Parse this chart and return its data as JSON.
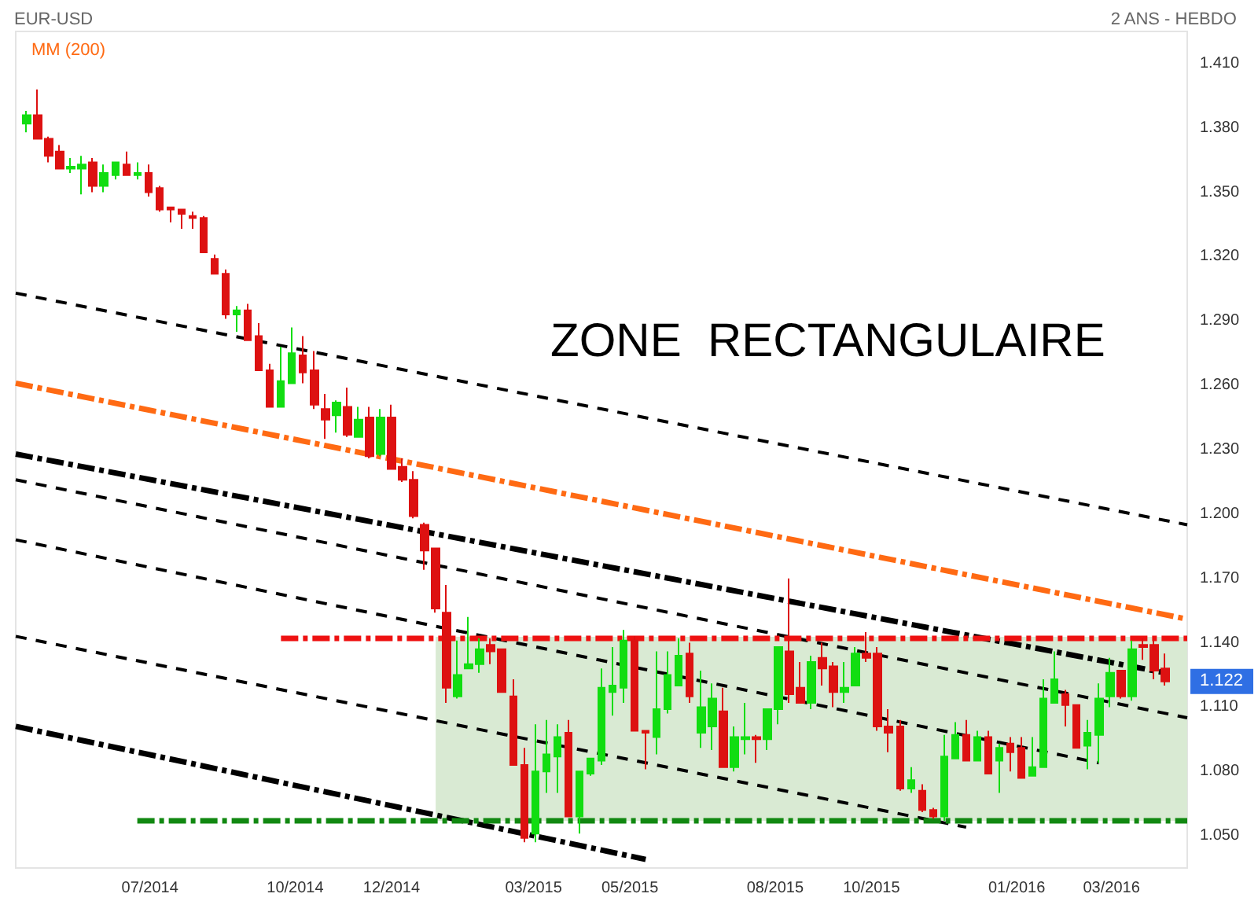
{
  "chart_data": {
    "type": "candlestick",
    "title": "EUR-USD",
    "subtitle": "2 ANS - HEBDO",
    "annotations": [
      "ZONE  RECTANGULAIRE",
      {
        "text": "1.122",
        "x": "2016-04-04",
        "y": 1.122
      }
    ],
    "legend": "top left",
    "grid": false,
    "xlim": [
      "2014-04-07",
      "2016-04-18"
    ],
    "xticks": [
      {
        "value": "2014-07-01",
        "label": "07/2014"
      },
      {
        "value": "2014-10-01",
        "label": "10/2014"
      },
      {
        "value": "2014-12-01",
        "label": "12/2014"
      },
      {
        "value": "2015-03-01",
        "label": "03/2015"
      },
      {
        "value": "2015-05-01",
        "label": "05/2015"
      },
      {
        "value": "2015-08-01",
        "label": "08/2015"
      },
      {
        "value": "2015-10-01",
        "label": "10/2015"
      },
      {
        "value": "2016-01-01",
        "label": "01/2016"
      },
      {
        "value": "2016-03-01",
        "label": "03/2016"
      }
    ],
    "ylim": [
      1.035,
      1.425
    ],
    "yticks": [
      {
        "value": 1.05,
        "label": "1.050"
      },
      {
        "value": 1.08,
        "label": "1.080"
      },
      {
        "value": 1.11,
        "label": "1.110"
      },
      {
        "value": 1.14,
        "label": "1.140"
      },
      {
        "value": 1.17,
        "label": "1.170"
      },
      {
        "value": 1.2,
        "label": "1.200"
      },
      {
        "value": 1.23,
        "label": "1.230"
      },
      {
        "value": 1.26,
        "label": "1.260"
      },
      {
        "value": 1.29,
        "label": "1.290"
      },
      {
        "value": 1.32,
        "label": "1.320"
      },
      {
        "value": 1.35,
        "label": "1.350"
      },
      {
        "value": 1.38,
        "label": "1.380"
      },
      {
        "value": 1.41,
        "label": "1.410"
      }
    ],
    "series": [
      {
        "type": "line",
        "line_style": "solid",
        "color": "#d9ead3",
        "x": [
          "2014-12-29",
          "2016-04-18"
        ],
        "values": [
          1.142,
          1.142
        ],
        "lower": [
          1.057,
          1.057
        ],
        "upper": [
          1.142,
          1.142
        ]
      },
      {
        "type": "line",
        "color": "#000000",
        "line_style": "dashed",
        "x": [
          "2014-04-07",
          "2016-04-18"
        ],
        "values": [
          1.303,
          1.195
        ]
      },
      {
        "type": "line",
        "name": "MM (200)",
        "color": "#ff6a13",
        "line_style": "dashdot",
        "x": [
          "2014-04-07",
          "2016-04-18"
        ],
        "values": [
          1.261,
          1.151
        ]
      },
      {
        "type": "line",
        "color": "#000000",
        "line_style": "dashdot",
        "x": [
          "2014-04-07",
          "2016-04-04"
        ],
        "values": [
          1.228,
          1.126
        ]
      },
      {
        "type": "line",
        "color": "#000000",
        "line_style": "dashed",
        "x": [
          "2014-04-07",
          "2016-04-18"
        ],
        "values": [
          1.216,
          1.105
        ]
      },
      {
        "type": "line",
        "color": "#000000",
        "line_style": "dashed",
        "x": [
          "2014-04-07",
          "2016-02-22"
        ],
        "values": [
          1.188,
          1.084
        ]
      },
      {
        "type": "line",
        "color": "#000000",
        "line_style": "dashed",
        "x": [
          "2014-04-07",
          "2015-11-30"
        ],
        "values": [
          1.143,
          1.054
        ]
      },
      {
        "type": "line",
        "color": "#000000",
        "line_style": "dashdot",
        "x": [
          "2014-04-07",
          "2015-05-11"
        ],
        "values": [
          1.101,
          1.039
        ]
      },
      {
        "type": "line",
        "color": "#ee1111",
        "line_style": "dashdot",
        "x": [
          "2014-09-22",
          "2016-04-18"
        ],
        "values": [
          1.142,
          1.142
        ]
      },
      {
        "type": "line",
        "color": "#118811",
        "line_style": "dashdot",
        "x": [
          "2014-06-23",
          "2016-04-18"
        ],
        "values": [
          1.057,
          1.057
        ]
      },
      {
        "x": [
          "2014-04-14",
          "2014-04-21",
          "2014-04-28",
          "2014-05-05",
          "2014-05-12",
          "2014-05-19",
          "2014-05-26",
          "2014-06-02",
          "2014-06-09",
          "2014-06-16",
          "2014-06-23",
          "2014-06-30",
          "2014-07-07",
          "2014-07-14",
          "2014-07-21",
          "2014-07-28",
          "2014-08-04",
          "2014-08-11",
          "2014-08-18",
          "2014-08-25",
          "2014-09-01",
          "2014-09-08",
          "2014-09-15",
          "2014-09-22",
          "2014-09-29",
          "2014-10-06",
          "2014-10-13",
          "2014-10-20",
          "2014-10-27",
          "2014-11-03",
          "2014-11-10",
          "2014-11-17",
          "2014-11-24",
          "2014-12-01",
          "2014-12-08",
          "2014-12-15",
          "2014-12-22",
          "2014-12-29",
          "2015-01-05",
          "2015-01-12",
          "2015-01-19",
          "2015-01-26",
          "2015-02-02",
          "2015-02-09",
          "2015-02-16",
          "2015-02-23",
          "2015-03-02",
          "2015-03-09",
          "2015-03-16",
          "2015-03-23",
          "2015-03-30",
          "2015-04-06",
          "2015-04-13",
          "2015-04-20",
          "2015-04-27",
          "2015-05-04",
          "2015-05-11",
          "2015-05-18",
          "2015-05-25",
          "2015-06-01",
          "2015-06-08",
          "2015-06-15",
          "2015-06-22",
          "2015-06-29",
          "2015-07-06",
          "2015-07-13",
          "2015-07-20",
          "2015-07-27",
          "2015-08-03",
          "2015-08-10",
          "2015-08-17",
          "2015-08-24",
          "2015-08-31",
          "2015-09-07",
          "2015-09-14",
          "2015-09-21",
          "2015-09-28",
          "2015-10-05",
          "2015-10-12",
          "2015-10-19",
          "2015-10-26",
          "2015-11-02",
          "2015-11-09",
          "2015-11-16",
          "2015-11-23",
          "2015-11-30",
          "2015-12-07",
          "2015-12-14",
          "2015-12-21",
          "2015-12-28",
          "2016-01-04",
          "2016-01-11",
          "2016-01-18",
          "2016-01-25",
          "2016-02-01",
          "2016-02-08",
          "2016-02-15",
          "2016-02-22",
          "2016-02-29",
          "2016-03-07",
          "2016-03-14",
          "2016-03-21",
          "2016-03-28",
          "2016-04-04"
        ],
        "ohlc": [
          [
            1.382,
            1.388,
            1.378,
            1.386
          ],
          [
            1.386,
            1.398,
            1.375,
            1.375
          ],
          [
            1.375,
            1.376,
            1.364,
            1.367
          ],
          [
            1.369,
            1.372,
            1.361,
            1.361
          ],
          [
            1.361,
            1.366,
            1.359,
            1.362
          ],
          [
            1.361,
            1.367,
            1.349,
            1.363
          ],
          [
            1.364,
            1.366,
            1.35,
            1.353
          ],
          [
            1.353,
            1.363,
            1.35,
            1.359
          ],
          [
            1.358,
            1.364,
            1.356,
            1.364
          ],
          [
            1.363,
            1.369,
            1.358,
            1.358
          ],
          [
            1.358,
            1.364,
            1.356,
            1.359
          ],
          [
            1.359,
            1.363,
            1.348,
            1.35
          ],
          [
            1.352,
            1.353,
            1.341,
            1.342
          ],
          [
            1.343,
            1.343,
            1.336,
            1.342
          ],
          [
            1.342,
            1.342,
            1.333,
            1.34
          ],
          [
            1.339,
            1.341,
            1.333,
            1.338
          ],
          [
            1.338,
            1.339,
            1.322,
            1.322
          ],
          [
            1.319,
            1.321,
            1.312,
            1.312
          ],
          [
            1.312,
            1.314,
            1.291,
            1.293
          ],
          [
            1.293,
            1.297,
            1.285,
            1.295
          ],
          [
            1.295,
            1.298,
            1.281,
            1.281
          ],
          [
            1.283,
            1.289,
            1.267,
            1.267
          ],
          [
            1.267,
            1.27,
            1.25,
            1.25
          ],
          [
            1.25,
            1.278,
            1.25,
            1.262
          ],
          [
            1.261,
            1.287,
            1.261,
            1.275
          ],
          [
            1.274,
            1.283,
            1.261,
            1.266
          ],
          [
            1.267,
            1.276,
            1.249,
            1.251
          ],
          [
            1.249,
            1.256,
            1.235,
            1.244
          ],
          [
            1.246,
            1.253,
            1.238,
            1.252
          ],
          [
            1.25,
            1.259,
            1.236,
            1.237
          ],
          [
            1.236,
            1.25,
            1.236,
            1.244
          ],
          [
            1.245,
            1.25,
            1.226,
            1.227
          ],
          [
            1.228,
            1.249,
            1.227,
            1.245
          ],
          [
            1.245,
            1.251,
            1.221,
            1.221
          ],
          [
            1.222,
            1.226,
            1.215,
            1.216
          ],
          [
            1.216,
            1.22,
            1.198,
            1.199
          ],
          [
            1.195,
            1.196,
            1.174,
            1.183
          ],
          [
            1.184,
            1.184,
            1.154,
            1.156
          ],
          [
            1.154,
            1.167,
            1.112,
            1.119
          ],
          [
            1.115,
            1.141,
            1.114,
            1.125
          ],
          [
            1.128,
            1.152,
            1.128,
            1.13
          ],
          [
            1.13,
            1.142,
            1.126,
            1.137
          ],
          [
            1.139,
            1.142,
            1.13,
            1.136
          ],
          [
            1.137,
            1.137,
            1.117,
            1.117
          ],
          [
            1.115,
            1.123,
            1.083,
            1.083
          ],
          [
            1.083,
            1.091,
            1.047,
            1.049
          ],
          [
            1.051,
            1.102,
            1.047,
            1.08
          ],
          [
            1.08,
            1.104,
            1.07,
            1.088
          ],
          [
            1.087,
            1.102,
            1.07,
            1.096
          ],
          [
            1.098,
            1.104,
            1.059,
            1.059
          ],
          [
            1.059,
            1.08,
            1.051,
            1.08
          ],
          [
            1.079,
            1.086,
            1.078,
            1.086
          ],
          [
            1.085,
            1.128,
            1.083,
            1.119
          ],
          [
            1.117,
            1.138,
            1.106,
            1.12
          ],
          [
            1.119,
            1.146,
            1.112,
            1.141
          ],
          [
            1.141,
            1.143,
            1.099,
            1.099
          ],
          [
            1.099,
            1.099,
            1.081,
            1.098
          ],
          [
            1.096,
            1.136,
            1.088,
            1.109
          ],
          [
            1.109,
            1.136,
            1.107,
            1.125
          ],
          [
            1.12,
            1.142,
            1.12,
            1.134
          ],
          [
            1.135,
            1.14,
            1.112,
            1.115
          ],
          [
            1.098,
            1.127,
            1.091,
            1.11
          ],
          [
            1.101,
            1.121,
            1.09,
            1.114
          ],
          [
            1.108,
            1.119,
            1.082,
            1.082
          ],
          [
            1.082,
            1.101,
            1.08,
            1.096
          ],
          [
            1.095,
            1.112,
            1.088,
            1.096
          ],
          [
            1.096,
            1.097,
            1.084,
            1.095
          ],
          [
            1.095,
            1.109,
            1.09,
            1.109
          ],
          [
            1.109,
            1.138,
            1.102,
            1.138
          ],
          [
            1.136,
            1.17,
            1.112,
            1.116
          ],
          [
            1.119,
            1.131,
            1.112,
            1.112
          ],
          [
            1.112,
            1.134,
            1.109,
            1.131
          ],
          [
            1.133,
            1.14,
            1.12,
            1.128
          ],
          [
            1.129,
            1.131,
            1.11,
            1.117
          ],
          [
            1.117,
            1.131,
            1.112,
            1.119
          ],
          [
            1.12,
            1.138,
            1.12,
            1.135
          ],
          [
            1.135,
            1.145,
            1.131,
            1.133
          ],
          [
            1.135,
            1.138,
            1.099,
            1.101
          ],
          [
            1.101,
            1.109,
            1.089,
            1.098
          ],
          [
            1.101,
            1.104,
            1.071,
            1.072
          ],
          [
            1.072,
            1.082,
            1.07,
            1.076
          ],
          [
            1.071,
            1.074,
            1.061,
            1.062
          ],
          [
            1.062,
            1.063,
            1.058,
            1.059
          ],
          [
            1.059,
            1.097,
            1.057,
            1.087
          ],
          [
            1.086,
            1.103,
            1.086,
            1.097
          ],
          [
            1.097,
            1.104,
            1.085,
            1.085
          ],
          [
            1.085,
            1.099,
            1.085,
            1.096
          ],
          [
            1.096,
            1.099,
            1.079,
            1.079
          ],
          [
            1.085,
            1.093,
            1.07,
            1.091
          ],
          [
            1.093,
            1.096,
            1.08,
            1.089
          ],
          [
            1.091,
            1.096,
            1.077,
            1.077
          ],
          [
            1.078,
            1.096,
            1.078,
            1.082
          ],
          [
            1.082,
            1.123,
            1.082,
            1.114
          ],
          [
            1.112,
            1.136,
            1.112,
            1.123
          ],
          [
            1.116,
            1.118,
            1.101,
            1.111
          ],
          [
            1.111,
            1.111,
            1.091,
            1.091
          ],
          [
            1.092,
            1.104,
            1.081,
            1.098
          ],
          [
            1.097,
            1.121,
            1.084,
            1.114
          ],
          [
            1.115,
            1.133,
            1.11,
            1.126
          ],
          [
            1.127,
            1.127,
            1.114,
            1.115
          ],
          [
            1.115,
            1.141,
            1.113,
            1.137
          ],
          [
            1.139,
            1.142,
            1.132,
            1.138
          ],
          [
            1.139,
            1.141,
            1.123,
            1.127
          ],
          [
            1.128,
            1.135,
            1.12,
            1.122
          ]
        ],
        "colors": [
          "#11dd11",
          "#dd1111",
          "#dd1111",
          "#dd1111",
          "#11dd11",
          "#11dd11",
          "#dd1111",
          "#11dd11",
          "#11dd11",
          "#dd1111",
          "#11dd11",
          "#dd1111",
          "#dd1111",
          "#dd1111",
          "#dd1111",
          "#dd1111",
          "#dd1111",
          "#dd1111",
          "#dd1111",
          "#11dd11",
          "#dd1111",
          "#dd1111",
          "#dd1111",
          "#11dd11",
          "#11dd11",
          "#dd1111",
          "#dd1111",
          "#dd1111",
          "#11dd11",
          "#dd1111",
          "#11dd11",
          "#dd1111",
          "#11dd11",
          "#dd1111",
          "#dd1111",
          "#dd1111",
          "#dd1111",
          "#dd1111",
          "#dd1111",
          "#11dd11",
          "#11dd11",
          "#11dd11",
          "#dd1111",
          "#dd1111",
          "#dd1111",
          "#dd1111",
          "#11dd11",
          "#11dd11",
          "#11dd11",
          "#dd1111",
          "#11dd11",
          "#11dd11",
          "#11dd11",
          "#11dd11",
          "#11dd11",
          "#dd1111",
          "#dd1111",
          "#11dd11",
          "#11dd11",
          "#11dd11",
          "#dd1111",
          "#11dd11",
          "#11dd11",
          "#dd1111",
          "#11dd11",
          "#11dd11",
          "#dd1111",
          "#11dd11",
          "#11dd11",
          "#dd1111",
          "#dd1111",
          "#11dd11",
          "#dd1111",
          "#dd1111",
          "#11dd11",
          "#11dd11",
          "#dd1111",
          "#dd1111",
          "#dd1111",
          "#dd1111",
          "#11dd11",
          "#dd1111",
          "#dd1111",
          "#11dd11",
          "#11dd11",
          "#dd1111",
          "#11dd11",
          "#dd1111",
          "#11dd11",
          "#dd1111",
          "#dd1111",
          "#11dd11",
          "#11dd11",
          "#11dd11",
          "#dd1111",
          "#dd1111",
          "#11dd11",
          "#11dd11",
          "#11dd11",
          "#dd1111",
          "#11dd11",
          "#dd1111",
          "#dd1111",
          "#dd1111"
        ]
      }
    ]
  }
}
